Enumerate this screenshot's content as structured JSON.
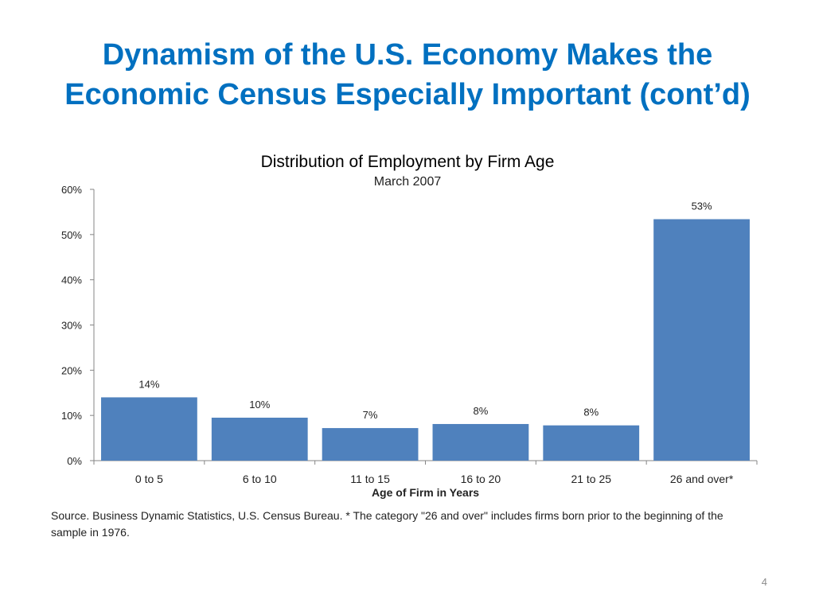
{
  "slide": {
    "title_line1": "Dynamism of the U.S. Economy Makes the",
    "title_line2": "Economic Census Especially Important (cont’d)",
    "source_note": "Source.  Business Dynamic Statistics, U.S. Census Bureau.  * The category \"26 and over\" includes firms born prior to the beginning of the sample in 1976.",
    "page_number": "4"
  },
  "chart_data": {
    "type": "bar",
    "title": "Distribution of Employment by Firm Age",
    "subtitle": "March 2007",
    "xlabel": "Age of Firm in Years",
    "ylabel": "",
    "categories": [
      "0 to 5",
      "6 to 10",
      "11 to 15",
      "16 to 20",
      "21 to 25",
      "26 and over*"
    ],
    "values": [
      14,
      9.5,
      7.2,
      8.1,
      7.8,
      53.4
    ],
    "data_labels": [
      "14%",
      "10%",
      "7%",
      "8%",
      "8%",
      "53%"
    ],
    "ylim": [
      0,
      60
    ],
    "yticks": [
      0,
      10,
      20,
      30,
      40,
      50,
      60
    ],
    "ytick_labels": [
      "0%",
      "10%",
      "20%",
      "30%",
      "40%",
      "50%",
      "60%"
    ],
    "grid": false,
    "legend": "none",
    "bar_color": "#4f81bd"
  }
}
